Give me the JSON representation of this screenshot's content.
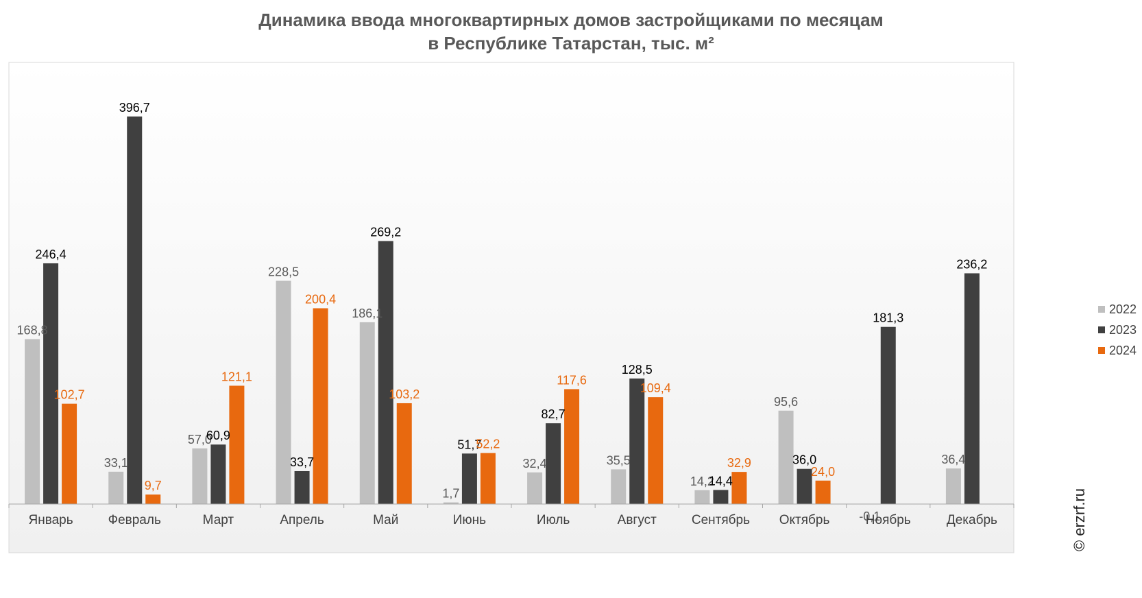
{
  "chart_data": {
    "type": "bar",
    "title_line1": "Динамика ввода многоквартирных домов застройщиками по месяцам",
    "title_line2": "в Республике Татарстан, тыс. м²",
    "categories": [
      "Январь",
      "Февраль",
      "Март",
      "Апрель",
      "Май",
      "Июнь",
      "Июль",
      "Август",
      "Сентябрь",
      "Октябрь",
      "Ноябрь",
      "Декабрь"
    ],
    "series": [
      {
        "name": "2022",
        "color": "#bfbfbf",
        "label_color": "#595959",
        "values": [
          168.8,
          33.1,
          57.0,
          228.5,
          186.1,
          1.7,
          32.4,
          35.5,
          14.2,
          95.6,
          -0.1,
          36.4
        ],
        "labels": [
          "168,8",
          "33,1",
          "57,0",
          "228,5",
          "186,1",
          "1,7",
          "32,4",
          "35,5",
          "14,2",
          "95,6",
          "-0,1",
          "36,4"
        ]
      },
      {
        "name": "2023",
        "color": "#404040",
        "label_color": "#000000",
        "values": [
          246.4,
          396.7,
          60.9,
          33.7,
          269.2,
          51.7,
          82.7,
          128.5,
          14.4,
          36.0,
          181.3,
          236.2
        ],
        "labels": [
          "246,4",
          "396,7",
          "60,9",
          "33,7",
          "269,2",
          "51,7",
          "82,7",
          "128,5",
          "14,4",
          "36,0",
          "181,3",
          "236,2"
        ]
      },
      {
        "name": "2024",
        "color": "#e8690f",
        "label_color": "#e8690f",
        "values": [
          102.7,
          9.7,
          121.1,
          200.4,
          103.2,
          52.2,
          117.6,
          109.4,
          32.9,
          24.0,
          null,
          null
        ],
        "labels": [
          "102,7",
          "9,7",
          "121,1",
          "200,4",
          "103,2",
          "52,2",
          "117,6",
          "109,4",
          "32,9",
          "24,0",
          "",
          ""
        ]
      }
    ],
    "legend_position": "right",
    "grid": false,
    "ylim": [
      0,
      420
    ]
  },
  "watermark": "© erzrf.ru"
}
